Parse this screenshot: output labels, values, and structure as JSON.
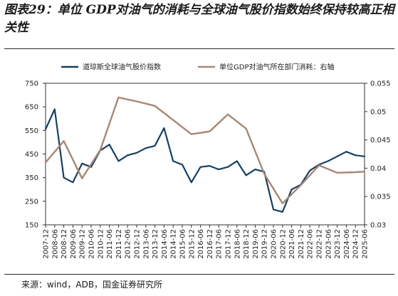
{
  "figure": {
    "title": "图表29：单位 GDP对油气的消耗与全球油气股价指数始终保持较高正相关性",
    "source": "来源：wind，ADB，国金证券研究所"
  },
  "chart_data": {
    "type": "line",
    "title": "",
    "xlabel": "",
    "ylabel": "",
    "y2label": "",
    "x_ticks": [
      "2007-12",
      "2008-06",
      "2008-12",
      "2009-06",
      "2009-12",
      "2010-06",
      "2010-12",
      "2011-06",
      "2011-12",
      "2012-06",
      "2012-12",
      "2013-06",
      "2013-12",
      "2014-06",
      "2014-12",
      "2015-06",
      "2015-12",
      "2016-06",
      "2016-12",
      "2017-06",
      "2017-12",
      "2018-06",
      "2018-12",
      "2019-06",
      "2019-12",
      "2020-06",
      "2020-12",
      "2021-06",
      "2021-12",
      "2022-06",
      "2022-12",
      "2023-06",
      "2023-12",
      "2024-06",
      "2024-12",
      "2025-06"
    ],
    "ylim": [
      150,
      750
    ],
    "y_ticks": [
      150,
      250,
      350,
      450,
      550,
      650,
      750
    ],
    "y2lim": [
      0.03,
      0.055
    ],
    "y2_ticks": [
      "0.03",
      "0.035",
      "0.04",
      "0.045",
      "0.05",
      "0.055"
    ],
    "legend_position": "top",
    "grid": false,
    "series": [
      {
        "name": "道琼斯全球油气股价指数",
        "axis": "left",
        "color": "#163e63",
        "x": [
          "2007-12",
          "2008-06",
          "2008-12",
          "2009-06",
          "2009-12",
          "2010-06",
          "2010-12",
          "2011-06",
          "2011-12",
          "2012-06",
          "2012-12",
          "2013-06",
          "2013-12",
          "2014-06",
          "2014-12",
          "2015-06",
          "2015-12",
          "2016-06",
          "2016-12",
          "2017-06",
          "2017-12",
          "2018-06",
          "2018-12",
          "2019-06",
          "2019-12",
          "2020-06",
          "2020-12",
          "2021-06",
          "2021-12",
          "2022-06",
          "2022-12",
          "2023-06",
          "2023-12",
          "2024-06",
          "2024-12",
          "2025-06"
        ],
        "values": [
          555,
          640,
          350,
          330,
          410,
          395,
          465,
          490,
          420,
          445,
          455,
          475,
          485,
          560,
          420,
          405,
          330,
          395,
          400,
          385,
          395,
          420,
          360,
          385,
          375,
          215,
          205,
          300,
          320,
          380,
          405,
          420,
          440,
          460,
          445,
          440
        ]
      },
      {
        "name": "单位GDP对油气所在部门消耗：右轴",
        "axis": "right",
        "color": "#a68774",
        "x": [
          "2007-12",
          "2008-12",
          "2009-12",
          "2010-12",
          "2011-12",
          "2012-12",
          "2013-12",
          "2014-12",
          "2015-12",
          "2016-12",
          "2017-12",
          "2018-12",
          "2019-12",
          "2020-12",
          "2021-12",
          "2022-12",
          "2023-12",
          "2024-12",
          "2025-06"
        ],
        "values": [
          0.041,
          0.0448,
          0.0382,
          0.0432,
          0.0525,
          0.0518,
          0.051,
          0.0485,
          0.046,
          0.0465,
          0.0495,
          0.047,
          0.039,
          0.0338,
          0.037,
          0.0405,
          0.0392,
          0.0393,
          0.0394
        ]
      }
    ]
  }
}
